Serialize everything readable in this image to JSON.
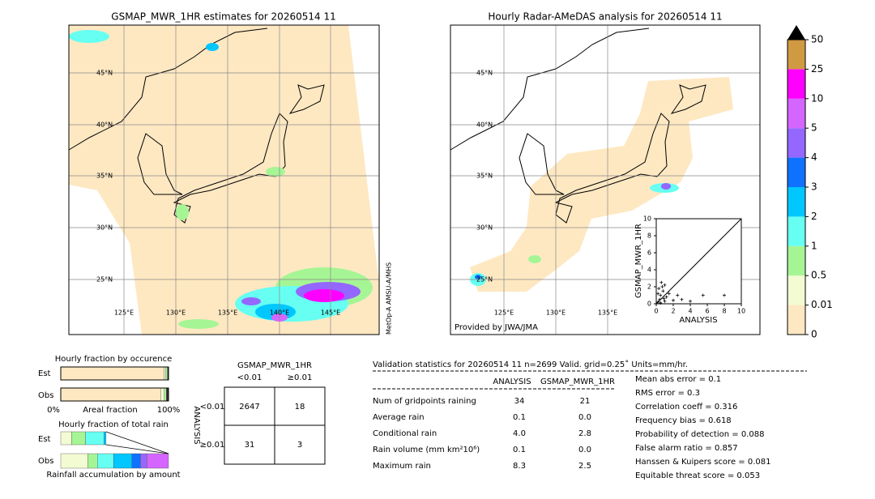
{
  "left_map": {
    "title": "GSMAP_MWR_1HR estimates for 20260514 11",
    "lat_labels": [
      "45°N",
      "40°N",
      "35°N",
      "30°N",
      "25°N"
    ],
    "lon_labels": [
      "125°E",
      "130°E",
      "135°E",
      "140°E",
      "145°E"
    ],
    "side_label": "MetOp-A AMSU-A/MHS"
  },
  "right_map": {
    "title": "Hourly Radar-AMeDAS analysis for 20260514 11",
    "lat_labels": [
      "45°N",
      "40°N",
      "35°N",
      "30°N",
      "25°N"
    ],
    "lon_labels": [
      "125°E",
      "130°E",
      "135°E"
    ],
    "credit": "Provided by JWA/JMA"
  },
  "scatter": {
    "type": "scatter",
    "xlabel": "ANALYSIS",
    "ylabel": "GSMAP_MWR_1HR",
    "xlim": [
      0,
      10
    ],
    "ylim": [
      0,
      10
    ],
    "xticks": [
      0,
      2,
      4,
      6,
      8,
      10
    ],
    "yticks": [
      0,
      2,
      4,
      6,
      8,
      10
    ],
    "x": [
      0.2,
      0.4,
      0.5,
      0.6,
      0.8,
      1.0,
      1.2,
      0.3,
      0.7,
      1.5,
      2.0,
      2.5,
      3.0,
      4.0,
      5.5,
      8.0,
      0.5,
      1.0,
      0.2,
      0.9
    ],
    "y": [
      0.2,
      0.5,
      1.0,
      2.5,
      1.5,
      0.3,
      0.8,
      1.8,
      2.0,
      1.2,
      0.4,
      1.0,
      0.5,
      0.3,
      1.0,
      1.0,
      0.1,
      2.2,
      1.2,
      0.6
    ]
  },
  "colorbar": {
    "levels": [
      0,
      0.01,
      0.5,
      1,
      2,
      3,
      4,
      5,
      10,
      25,
      50
    ],
    "colors": [
      "#fee8c2",
      "#f2fbd2",
      "#a6f595",
      "#66fff2",
      "#00c7ff",
      "#0f72ff",
      "#9467ff",
      "#d466ff",
      "#ff00ff",
      "#cf9a42"
    ],
    "over_color": "#000000"
  },
  "occurrence": {
    "title": "Hourly fraction by occurence",
    "rows": [
      "Est",
      "Obs"
    ],
    "axis_labels": [
      "0%",
      "Areal fraction",
      "100%"
    ],
    "colors": [
      "#fee8c2",
      "#f2fbd2",
      "#a6f595",
      "#333333"
    ],
    "est": [
      0.96,
      0.015,
      0.015,
      0.01
    ],
    "obs": [
      0.93,
      0.03,
      0.02,
      0.02
    ]
  },
  "total_rain": {
    "title": "Hourly fraction of total rain",
    "rows": [
      "Est",
      "Obs"
    ],
    "axis_label": "Rainfall accumulation by amount",
    "colors": [
      "#f2fbd2",
      "#a6f595",
      "#66fff2",
      "#00c7ff",
      "#0f72ff",
      "#9467ff",
      "#d466ff"
    ],
    "est": [
      0.1,
      0.13,
      0.17,
      0.02,
      0,
      0,
      0
    ],
    "obs": [
      0.25,
      0.09,
      0.15,
      0.17,
      0.08,
      0.06,
      0.2
    ]
  },
  "contingency": {
    "title": "GSMAP_MWR_1HR",
    "col_headers": [
      "<0.01",
      "≥0.01"
    ],
    "row_title": "ANALYSIS",
    "row_headers": [
      "<0.01",
      "≥0.01"
    ],
    "cells": [
      [
        "2647",
        "18"
      ],
      [
        "31",
        "3"
      ]
    ]
  },
  "validation": {
    "header": "Validation statistics for 20260514 11  n=2699 Valid. grid=0.25˚ Units=mm/hr.",
    "columns": [
      "ANALYSIS",
      "GSMAP_MWR_1HR"
    ],
    "rows": [
      [
        "Num of gridpoints raining",
        "34",
        "21"
      ],
      [
        "Average rain",
        "0.1",
        "0.0"
      ],
      [
        "Conditional rain",
        "4.0",
        "2.8"
      ],
      [
        "Rain volume (mm km²10⁶)",
        "0.1",
        "0.0"
      ],
      [
        "Maximum rain",
        "8.3",
        "2.5"
      ]
    ],
    "scores": [
      "Mean abs error =    0.1",
      "RMS error =    0.3",
      "Correlation coeff =  0.316",
      "Frequency bias =  0.618",
      "Probability of detection =  0.088",
      "False alarm ratio =  0.857",
      "Hanssen & Kuipers score =  0.081",
      "Equitable threat score =  0.053"
    ]
  }
}
